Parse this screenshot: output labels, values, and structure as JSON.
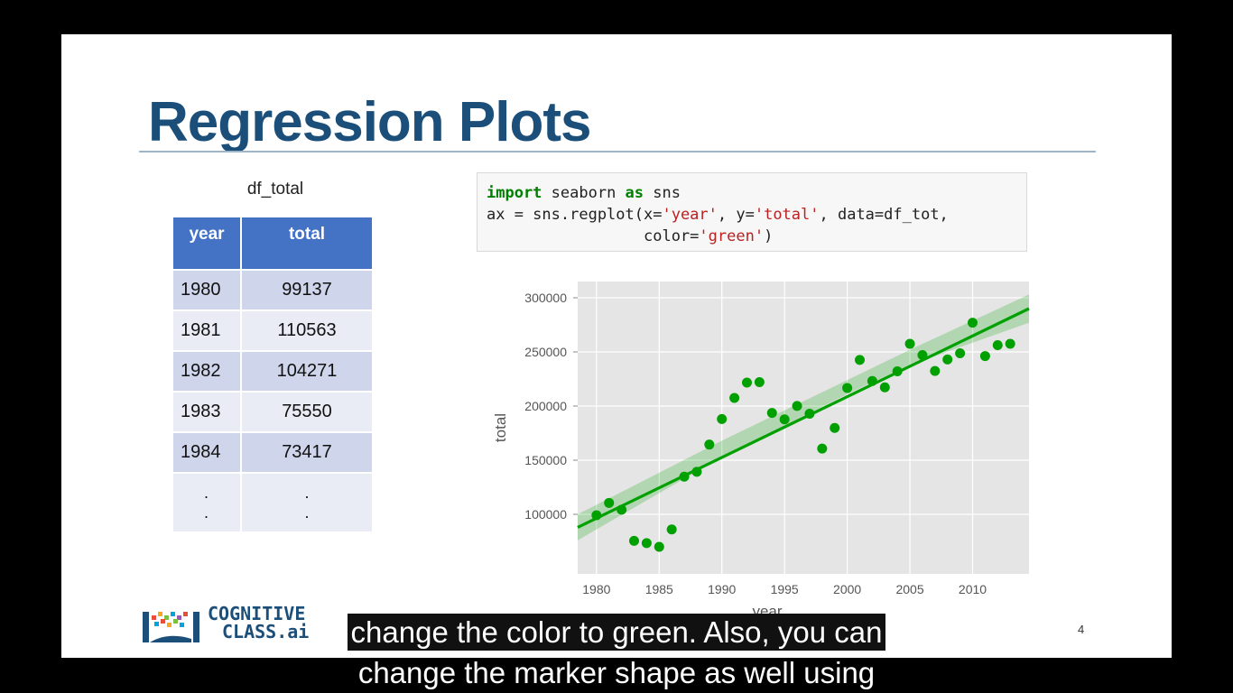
{
  "slide": {
    "title": "Regression Plots",
    "table_caption": "df_total",
    "table": {
      "headers": [
        "year",
        "total"
      ],
      "rows": [
        {
          "year": "1980",
          "total": "99137"
        },
        {
          "year": "1981",
          "total": "110563"
        },
        {
          "year": "1982",
          "total": "104271"
        },
        {
          "year": "1983",
          "total": "75550"
        },
        {
          "year": "1984",
          "total": "73417"
        }
      ],
      "ellipsis": ".\n."
    },
    "code": {
      "line1_kw1": "import",
      "line1_mid": " seaborn ",
      "line1_kw2": "as",
      "line1_end": " sns",
      "line2_a": "ax = sns.regplot(x=",
      "line2_s1": "'year'",
      "line2_b": ", y=",
      "line2_s2": "'total'",
      "line2_c": ", data=df_tot,",
      "line3_a": "                 color=",
      "line3_s": "'green'",
      "line3_b": ")"
    },
    "logo": {
      "line1": "COGNITIVE",
      "line2": "CLASS.ai"
    },
    "slide_number": "4"
  },
  "captions": {
    "line1": "change the color to green. Also, you can",
    "line2": "change the marker shape as well using"
  },
  "colors": {
    "title": "#1b4f7a",
    "table_header": "#4472c4",
    "points": "#00a000",
    "regression_line": "#00a000",
    "plot_background": "#e5e5e5"
  },
  "chart_data": {
    "type": "scatter",
    "xlabel": "year",
    "ylabel": "total",
    "xlim": [
      1978.5,
      2014.5
    ],
    "ylim": [
      45000,
      315000
    ],
    "xticks": [
      1980,
      1985,
      1990,
      1995,
      2000,
      2005,
      2010
    ],
    "yticks": [
      100000,
      150000,
      200000,
      250000,
      300000
    ],
    "grid": true,
    "points": [
      {
        "x": 1980,
        "y": 99137
      },
      {
        "x": 1981,
        "y": 110563
      },
      {
        "x": 1982,
        "y": 104271
      },
      {
        "x": 1983,
        "y": 75550
      },
      {
        "x": 1984,
        "y": 73417
      },
      {
        "x": 1985,
        "y": 69978
      },
      {
        "x": 1986,
        "y": 86048
      },
      {
        "x": 1987,
        "y": 134771
      },
      {
        "x": 1988,
        "y": 139306
      },
      {
        "x": 1989,
        "y": 164432
      },
      {
        "x": 1990,
        "y": 188054
      },
      {
        "x": 1991,
        "y": 207509
      },
      {
        "x": 1992,
        "y": 221687
      },
      {
        "x": 1993,
        "y": 222049
      },
      {
        "x": 1994,
        "y": 193665
      },
      {
        "x": 1995,
        "y": 187712
      },
      {
        "x": 1996,
        "y": 200085
      },
      {
        "x": 1997,
        "y": 192885
      },
      {
        "x": 1998,
        "y": 160727
      },
      {
        "x": 1999,
        "y": 179818
      },
      {
        "x": 2000,
        "y": 216712
      },
      {
        "x": 2001,
        "y": 242643
      },
      {
        "x": 2002,
        "y": 223111
      },
      {
        "x": 2003,
        "y": 217297
      },
      {
        "x": 2004,
        "y": 232083
      },
      {
        "x": 2005,
        "y": 257457
      },
      {
        "x": 2006,
        "y": 247057
      },
      {
        "x": 2007,
        "y": 232405
      },
      {
        "x": 2008,
        "y": 243047
      },
      {
        "x": 2009,
        "y": 248768
      },
      {
        "x": 2010,
        "y": 276956
      },
      {
        "x": 2011,
        "y": 246194
      },
      {
        "x": 2012,
        "y": 256222
      },
      {
        "x": 2013,
        "y": 257537
      }
    ],
    "regression": {
      "x": [
        1978.5,
        2014.5
      ],
      "y": [
        88000,
        290000
      ]
    },
    "confidence_band": {
      "upper": [
        [
          1978.5,
          100000
        ],
        [
          1990,
          168000
        ],
        [
          1995,
          196000
        ],
        [
          2000,
          224000
        ],
        [
          2005,
          252000
        ],
        [
          2014.5,
          303000
        ]
      ],
      "lower": [
        [
          1978.5,
          76000
        ],
        [
          1990,
          153000
        ],
        [
          1995,
          182000
        ],
        [
          2000,
          211000
        ],
        [
          2005,
          238000
        ],
        [
          2014.5,
          277000
        ]
      ]
    }
  }
}
